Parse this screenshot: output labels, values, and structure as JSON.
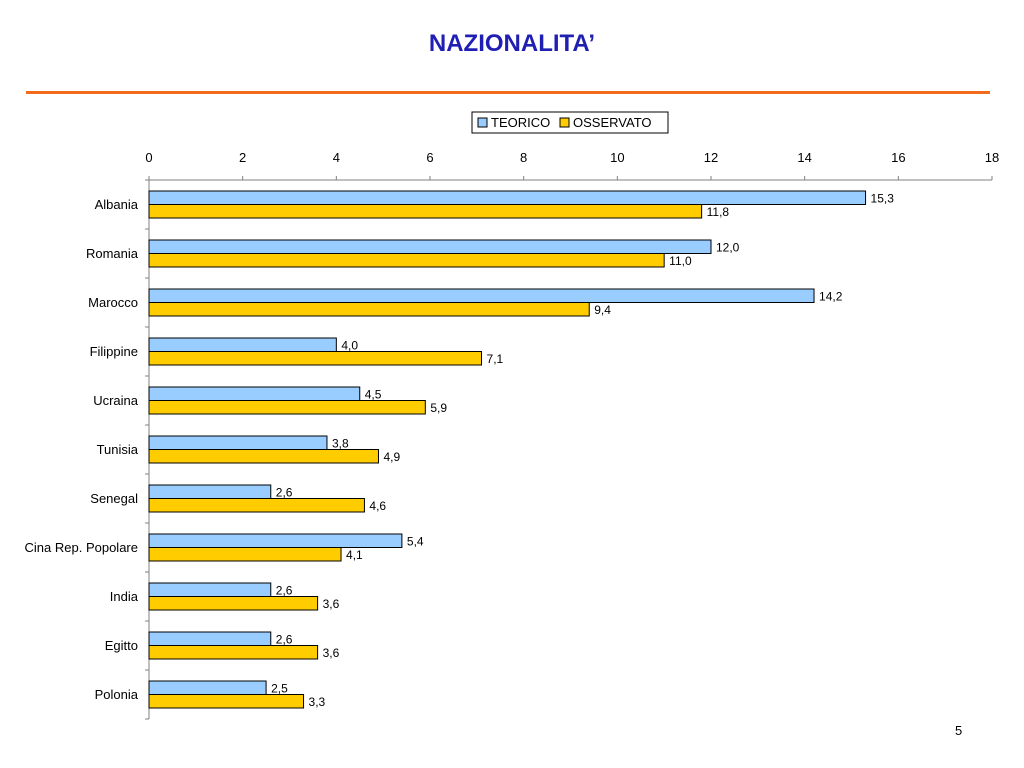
{
  "slide": {
    "title": "NAZIONALITA’",
    "page_number": "5",
    "rule_color": "#f26b1d",
    "title_color": "#1f1fb4"
  },
  "chart_data": {
    "type": "bar",
    "orientation": "horizontal",
    "categories": [
      "Albania",
      "Romania",
      "Marocco",
      "Filippine",
      "Ucraina",
      "Tunisia",
      "Senegal",
      "Cina Rep. Popolare",
      "India",
      "Egitto",
      "Polonia"
    ],
    "series": [
      {
        "name": "TEORICO",
        "color": "#99ccff",
        "values": [
          15.3,
          12.0,
          14.2,
          4.0,
          4.5,
          3.8,
          2.6,
          5.4,
          2.6,
          2.6,
          2.5
        ],
        "labels": [
          "15,3",
          "12,0",
          "14,2",
          "4,0",
          "4,5",
          "3,8",
          "2,6",
          "5,4",
          "2,6",
          "2,6",
          "2,5"
        ]
      },
      {
        "name": "OSSERVATO",
        "color": "#ffcc00",
        "values": [
          11.8,
          11.0,
          9.4,
          7.1,
          5.9,
          4.9,
          4.6,
          4.1,
          3.6,
          3.6,
          3.3
        ],
        "labels": [
          "11,8",
          "11,0",
          "9,4",
          "7,1",
          "5,9",
          "4,9",
          "4,6",
          "4,1",
          "3,6",
          "3,6",
          "3,3"
        ]
      }
    ],
    "xlim": [
      0,
      18
    ],
    "xticks": [
      0,
      2,
      4,
      6,
      8,
      10,
      12,
      14,
      16,
      18
    ],
    "xtick_labels": [
      "0",
      "2",
      "4",
      "6",
      "8",
      "10",
      "12",
      "14",
      "16",
      "18"
    ],
    "title": "",
    "xlabel": "",
    "ylabel": "",
    "grid": false,
    "legend": "top-right"
  }
}
